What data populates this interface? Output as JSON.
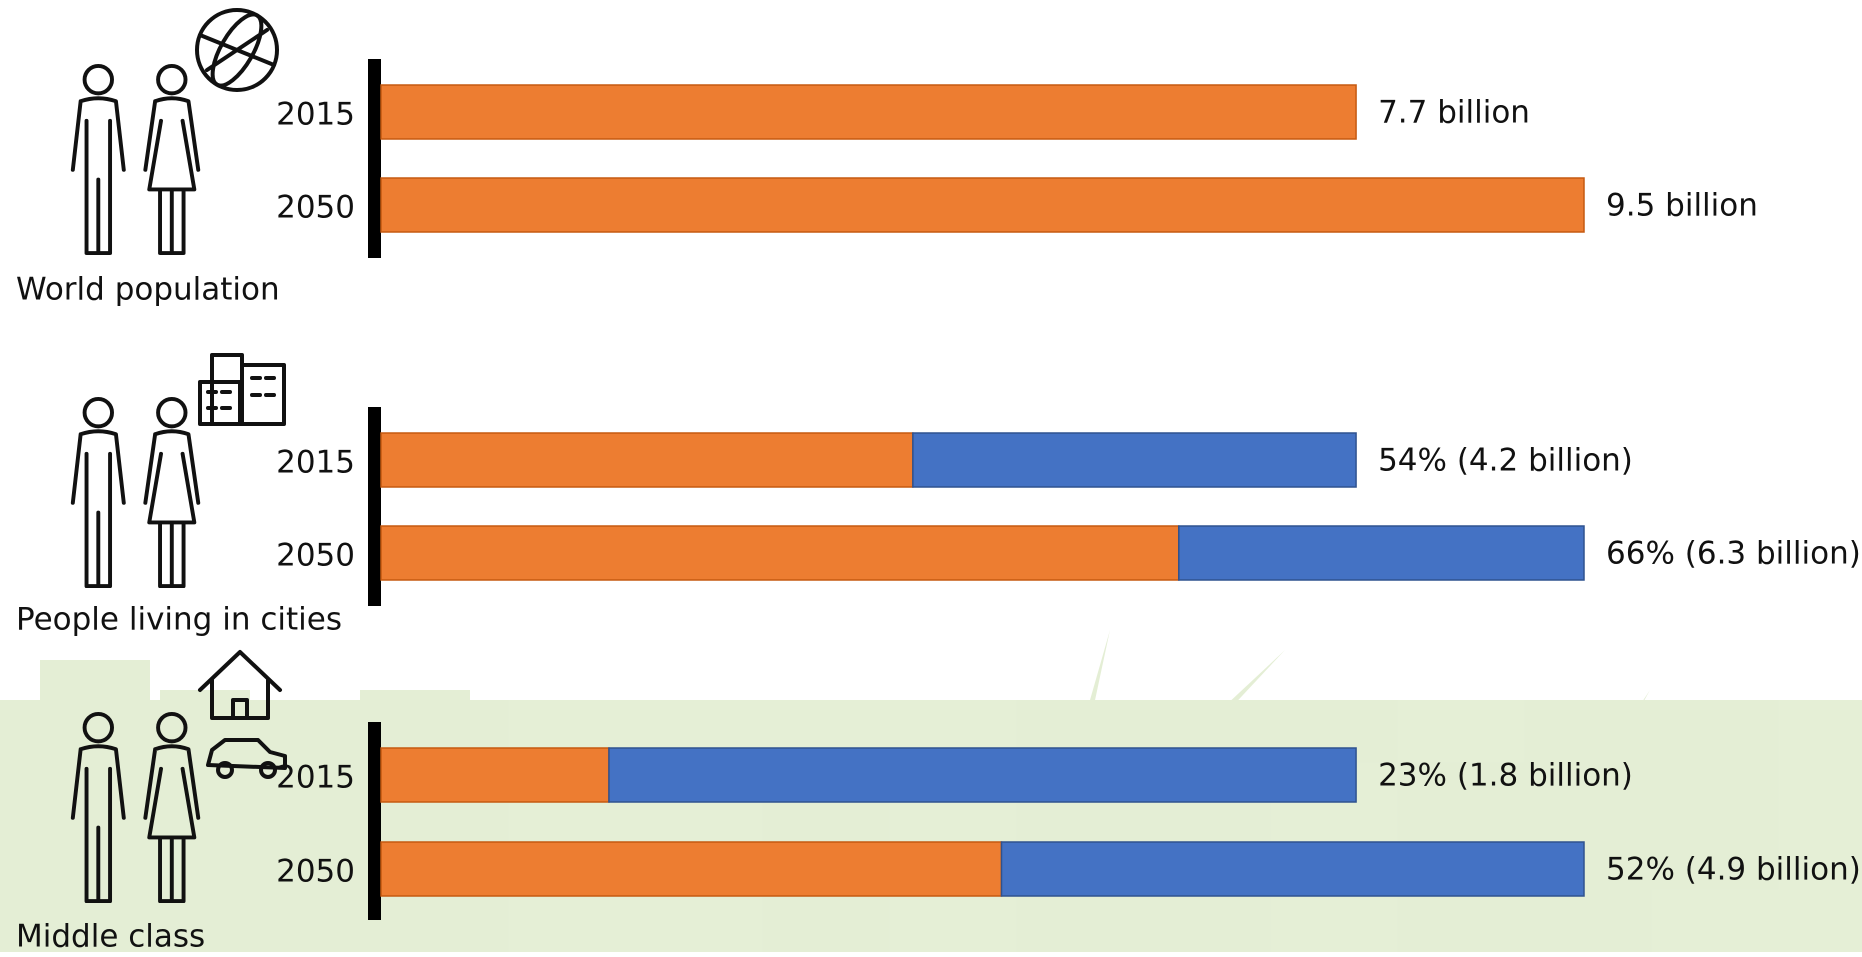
{
  "chart_data": [
    {
      "type": "bar",
      "title": "World population",
      "categories": [
        "2015",
        "2050"
      ],
      "series": [
        {
          "color": "#ed7d31",
          "values": [
            7.7,
            9.5
          ],
          "value_labels": [
            "7.7 billion",
            "9.5 billion"
          ]
        }
      ],
      "xlim": [
        0,
        9.5
      ]
    },
    {
      "type": "bar",
      "title": "People living in cities",
      "categories": [
        "2015",
        "2050"
      ],
      "series": [
        {
          "color": "#ed7d31",
          "values": [
            4.2,
            6.3
          ],
          "value_labels": [
            "54% (4.2 billion)",
            "66% (6.3 billion)"
          ]
        },
        {
          "color": "#4472c4",
          "values": [
            3.5,
            3.2
          ]
        }
      ],
      "xlim": [
        0,
        9.5
      ]
    },
    {
      "type": "bar",
      "title": "Middle class",
      "categories": [
        "2015",
        "2050"
      ],
      "series": [
        {
          "color": "#ed7d31",
          "values": [
            1.8,
            4.9
          ],
          "value_labels": [
            "23% (1.8 billion)",
            "52% (4.9 billion)"
          ]
        },
        {
          "color": "#4472c4",
          "values": [
            5.9,
            4.6
          ]
        }
      ],
      "xlim": [
        0,
        9.5
      ]
    }
  ]
}
